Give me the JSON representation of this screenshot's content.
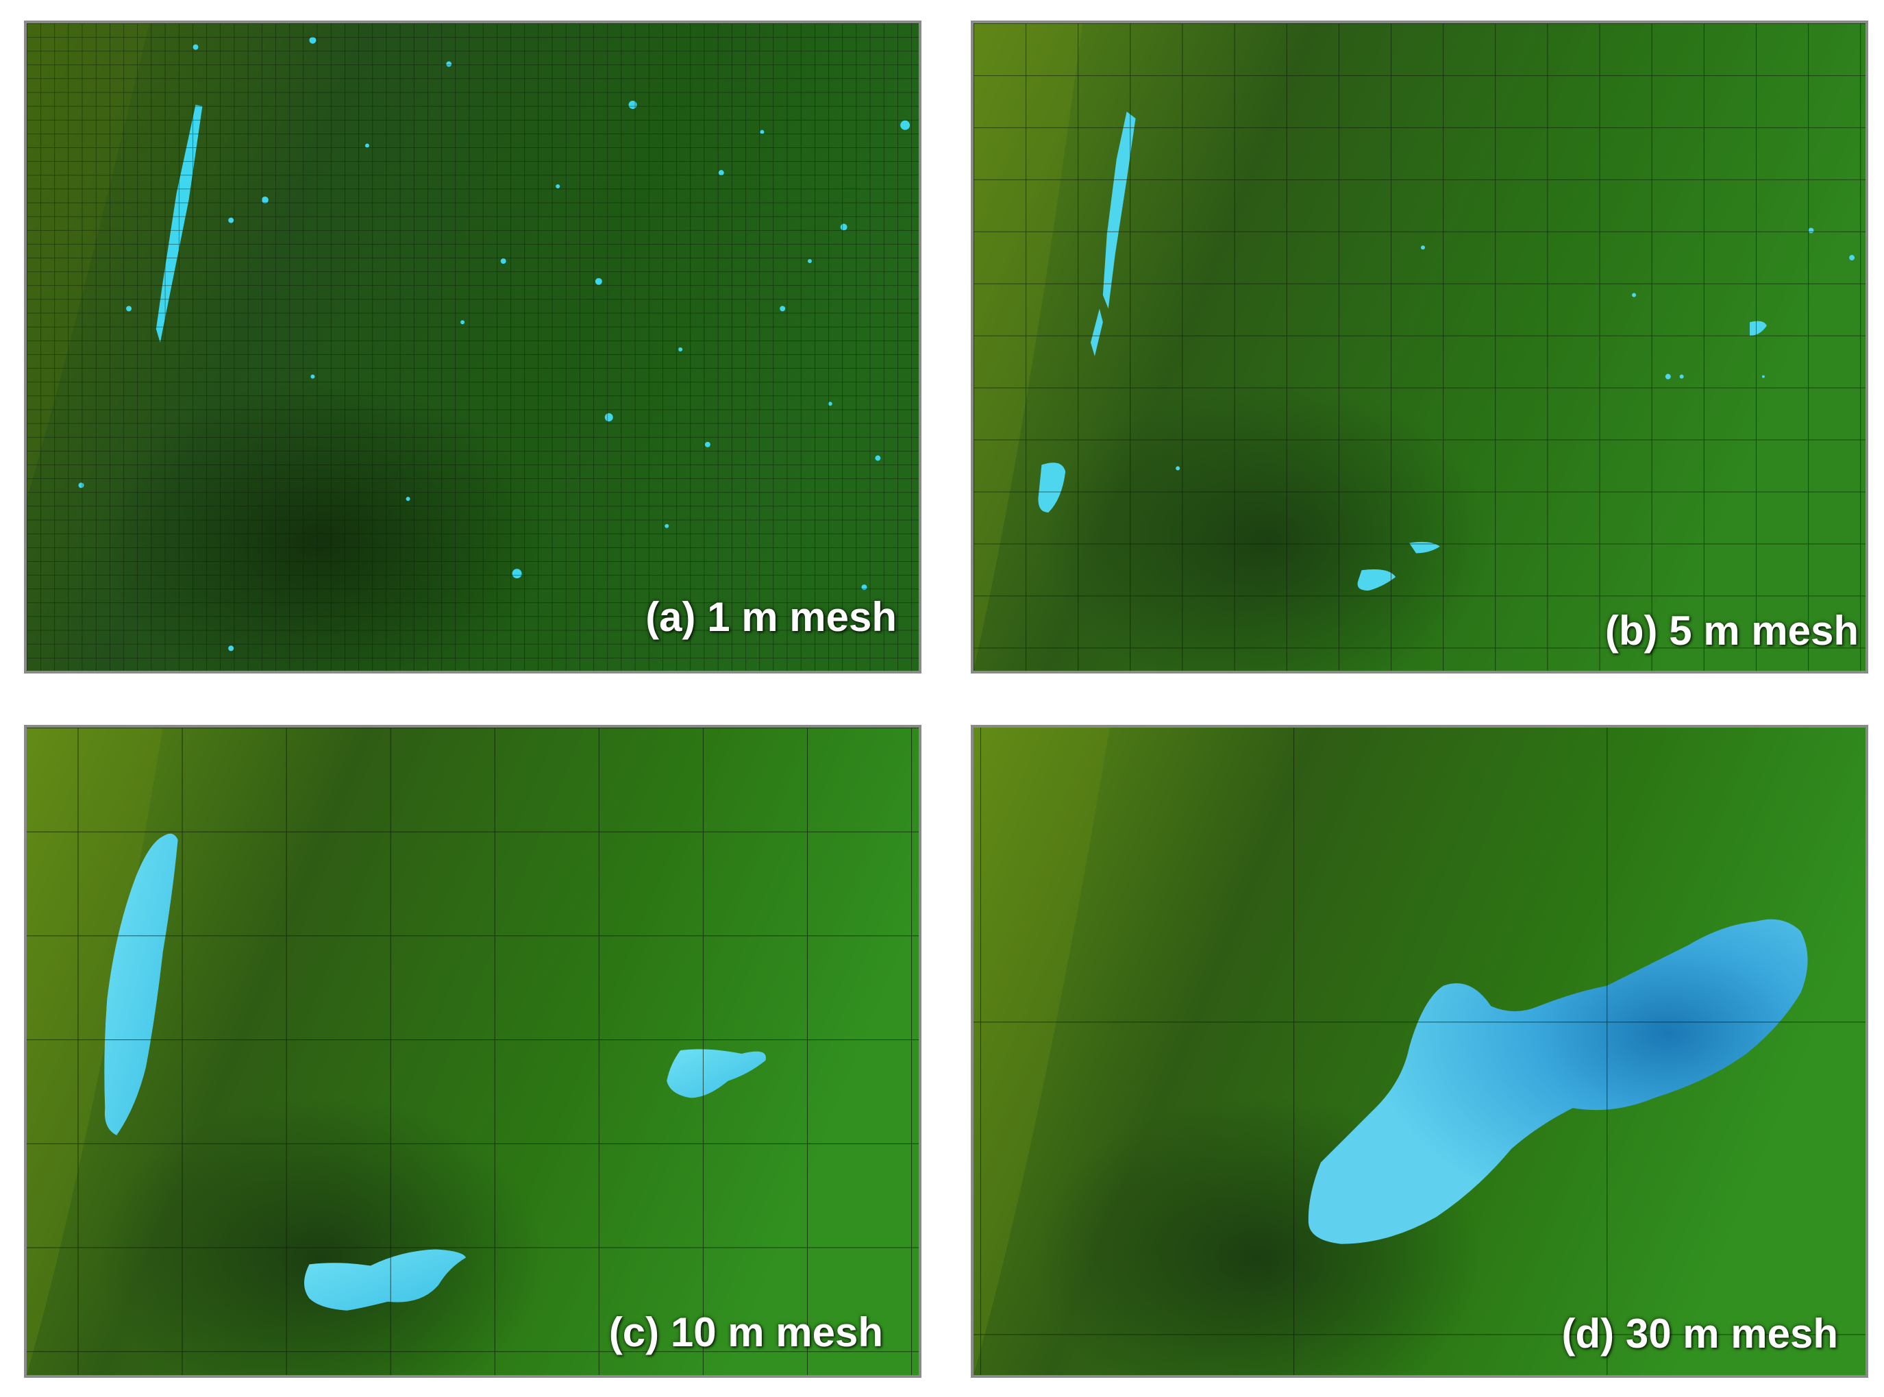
{
  "figure": {
    "colors": {
      "terrain_light": "#5e8a16",
      "terrain_mid": "#2f7412",
      "terrain_dark": "#1f4d0e",
      "terrain_deep": "#2d5a10",
      "water_light": "#5ed6ee",
      "water_mid": "#3cbde3",
      "water_dark": "#1b7fb8",
      "grid_line": "#0c1a08",
      "label_color": "#ffffff",
      "border": "#8a8a8a"
    },
    "panels": [
      {
        "id": "a",
        "label": "(a) 1 m mesh",
        "mesh_size_m": 1
      },
      {
        "id": "b",
        "label": "(b) 5 m mesh",
        "mesh_size_m": 5
      },
      {
        "id": "c",
        "label": "(c) 10 m mesh",
        "mesh_size_m": 10
      },
      {
        "id": "d",
        "label": "(d) 30 m mesh",
        "mesh_size_m": 30
      }
    ]
  }
}
